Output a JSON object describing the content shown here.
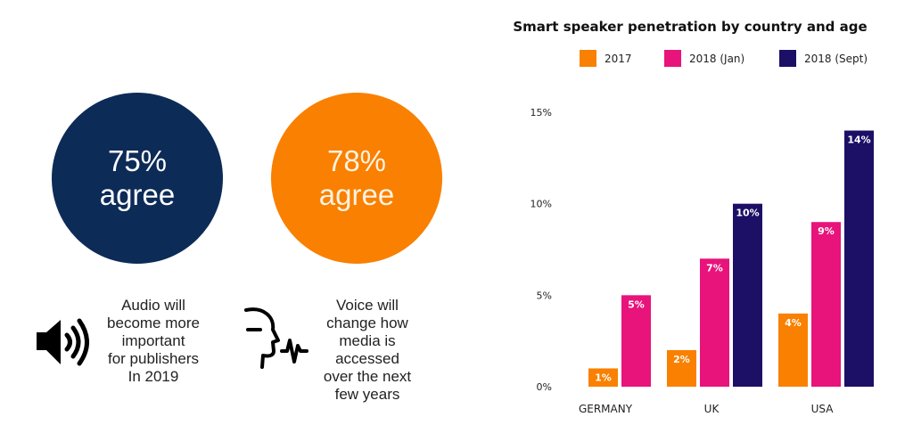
{
  "left_panel": {
    "stat_a": {
      "value": "75%",
      "label": "agree",
      "color": "#0d2b57"
    },
    "stat_b": {
      "value": "78%",
      "label": "agree",
      "color": "#f98000"
    },
    "caption_a": [
      "Audio will",
      "become more",
      "important",
      "for publishers",
      "In 2019"
    ],
    "caption_b": [
      "Voice will",
      "change how",
      "media is",
      "accessed",
      "over the next",
      "few years"
    ],
    "icons": [
      "speaker-icon",
      "voice-recognition-icon"
    ]
  },
  "chart_data": {
    "type": "bar",
    "title": "Smart speaker penetration by country and age",
    "categories": [
      "GERMANY",
      "UK",
      "USA"
    ],
    "series": [
      {
        "name": "2017",
        "color": "#f98000",
        "values": [
          1,
          2,
          4
        ],
        "labels": [
          "1%",
          "2%",
          "4%"
        ]
      },
      {
        "name": "2018 (Jan)",
        "color": "#e8137b",
        "values": [
          5,
          7,
          9
        ],
        "labels": [
          "5%",
          "7%",
          "9%"
        ]
      },
      {
        "name": "2018 (Sept)",
        "color": "#1c0f66",
        "values": [
          null,
          10,
          14
        ],
        "labels": [
          "",
          "10%",
          "14%"
        ]
      }
    ],
    "ylim": [
      0,
      15
    ],
    "yticks": [
      0,
      5,
      10,
      15
    ],
    "ytick_labels": [
      "0%",
      "5%",
      "10%",
      "15%"
    ],
    "grid": false,
    "legend_position": "top"
  }
}
